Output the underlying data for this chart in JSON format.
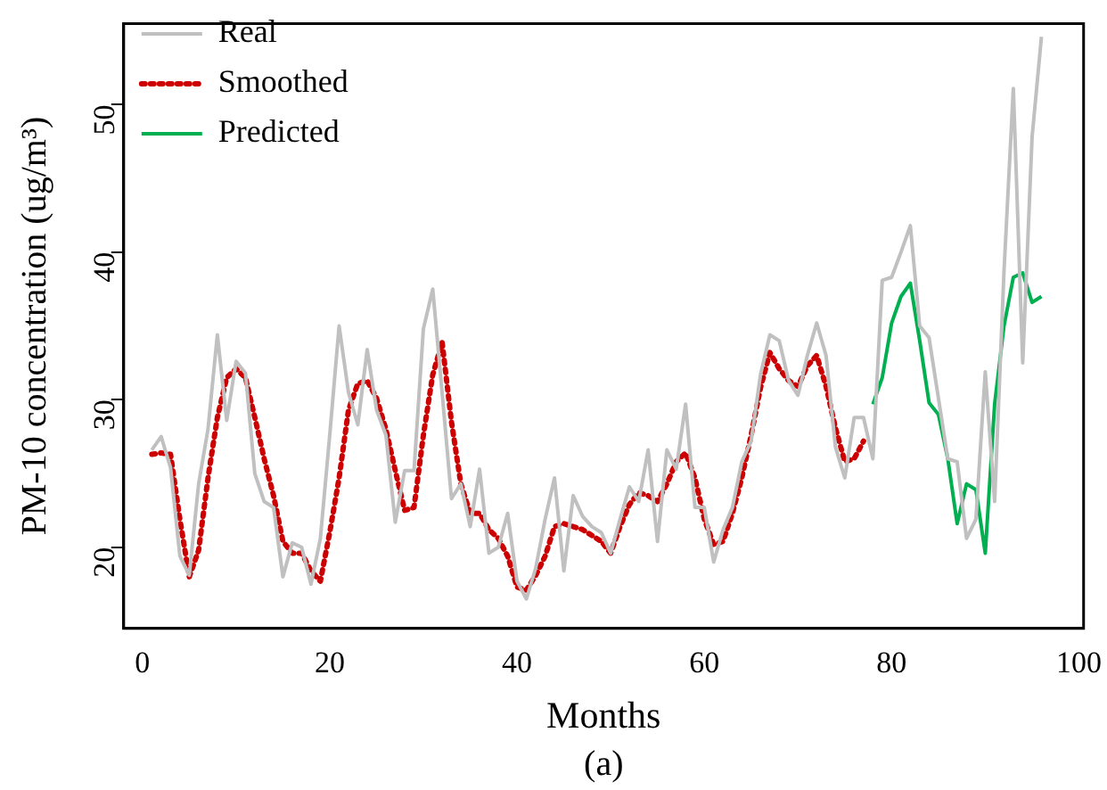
{
  "chart_data": {
    "type": "line",
    "xlabel": "Months",
    "ylabel": "PM-10 concentration (ug/m³)",
    "xlim": [
      -2,
      100.5
    ],
    "ylim": [
      14.5,
      55.5
    ],
    "xticks": [
      0,
      20,
      40,
      60,
      80,
      100
    ],
    "yticks": [
      20,
      30,
      40,
      50
    ],
    "grid": false,
    "legend": "top left",
    "marker": "none",
    "annotations": [
      "(a)"
    ],
    "series": [
      {
        "name": "Real",
        "color": "#c0c0c0",
        "line_style": "solid",
        "x": [
          1,
          2,
          3,
          4,
          5,
          6,
          7,
          8,
          9,
          10,
          11,
          12,
          13,
          14,
          15,
          16,
          17,
          18,
          19,
          20,
          21,
          22,
          23,
          24,
          25,
          26,
          27,
          28,
          29,
          30,
          31,
          32,
          33,
          34,
          35,
          36,
          37,
          38,
          39,
          40,
          41,
          42,
          43,
          44,
          45,
          46,
          47,
          48,
          49,
          50,
          51,
          52,
          53,
          54,
          55,
          56,
          57,
          58,
          59,
          60,
          61,
          62,
          63,
          64,
          65,
          66,
          67,
          68,
          69,
          70,
          71,
          72,
          73,
          74,
          75,
          76,
          77,
          78,
          79,
          80,
          81,
          82,
          83,
          84,
          85,
          86,
          87,
          88,
          89,
          90,
          91,
          92,
          93,
          94,
          95,
          96
        ],
        "values": [
          26.6,
          27.5,
          25.4,
          19.4,
          18.1,
          24.3,
          28.0,
          34.4,
          28.6,
          32.6,
          31.8,
          25.0,
          23.1,
          22.7,
          18.0,
          20.3,
          20.0,
          17.5,
          20.6,
          27.6,
          35.0,
          30.5,
          28.3,
          33.4,
          29.3,
          27.6,
          21.7,
          25.2,
          25.2,
          34.8,
          37.5,
          30.5,
          23.3,
          24.3,
          21.4,
          25.3,
          19.6,
          20.0,
          22.3,
          17.7,
          16.5,
          18.6,
          21.9,
          24.7,
          18.4,
          23.5,
          22.1,
          21.4,
          21.0,
          19.6,
          21.9,
          24.1,
          23.1,
          26.6,
          20.4,
          26.6,
          25.3,
          29.7,
          22.7,
          22.7,
          19.0,
          21.2,
          22.7,
          25.8,
          27.2,
          31.7,
          34.4,
          34.0,
          31.3,
          30.3,
          33.0,
          35.2,
          33.0,
          26.8,
          24.7,
          28.8,
          28.8,
          26.0,
          38.1,
          38.3,
          40.0,
          41.8,
          35.0,
          34.2,
          30.1,
          26.0,
          25.8,
          20.6,
          21.9,
          31.9,
          23.1,
          38.7,
          51.1,
          32.5,
          47.8,
          54.6
        ]
      },
      {
        "name": "Smoothed",
        "color": "#cc0000",
        "line_style": "dotted",
        "x": [
          1,
          2,
          3,
          4,
          5,
          6,
          7,
          8,
          9,
          10,
          11,
          12,
          13,
          14,
          15,
          16,
          17,
          18,
          19,
          20,
          21,
          22,
          23,
          24,
          25,
          26,
          27,
          28,
          29,
          30,
          31,
          32,
          33,
          34,
          35,
          36,
          37,
          38,
          39,
          40,
          41,
          42,
          43,
          44,
          45,
          46,
          47,
          48,
          49,
          50,
          51,
          52,
          53,
          54,
          55,
          56,
          57,
          58,
          59,
          60,
          61,
          62,
          63,
          64,
          65,
          66,
          67,
          68,
          69,
          70,
          71,
          72,
          73,
          74,
          75,
          76,
          77
        ],
        "values": [
          26.3,
          26.4,
          26.3,
          21.9,
          18.0,
          19.8,
          24.7,
          28.8,
          31.5,
          32.1,
          31.5,
          28.8,
          26.0,
          23.5,
          20.4,
          19.6,
          19.6,
          18.4,
          17.7,
          21.0,
          24.7,
          29.3,
          31.1,
          31.3,
          30.1,
          28.0,
          25.2,
          22.5,
          22.7,
          27.6,
          31.7,
          33.9,
          28.5,
          24.3,
          22.3,
          22.3,
          21.2,
          20.6,
          19.4,
          17.3,
          17.1,
          18.1,
          19.4,
          21.4,
          21.6,
          21.4,
          21.2,
          20.8,
          20.4,
          19.6,
          21.4,
          22.9,
          23.7,
          23.5,
          23.1,
          24.3,
          25.8,
          26.4,
          24.7,
          21.9,
          20.2,
          20.4,
          22.3,
          24.7,
          27.6,
          30.8,
          33.2,
          32.1,
          31.3,
          30.9,
          32.3,
          33.0,
          30.9,
          28.1,
          25.8,
          26.0,
          27.2
        ]
      },
      {
        "name": "Predicted",
        "color": "#00b050",
        "line_style": "solid",
        "x": [
          78,
          79,
          80,
          81,
          82,
          83,
          84,
          85,
          86,
          87,
          88,
          89,
          90,
          91,
          92,
          93,
          94,
          95,
          96
        ],
        "values": [
          29.7,
          31.5,
          35.2,
          37.0,
          37.9,
          34.0,
          29.8,
          29.0,
          26.0,
          21.6,
          24.3,
          23.9,
          19.6,
          29.7,
          35.0,
          38.3,
          38.6,
          36.6,
          37.0
        ]
      }
    ]
  }
}
